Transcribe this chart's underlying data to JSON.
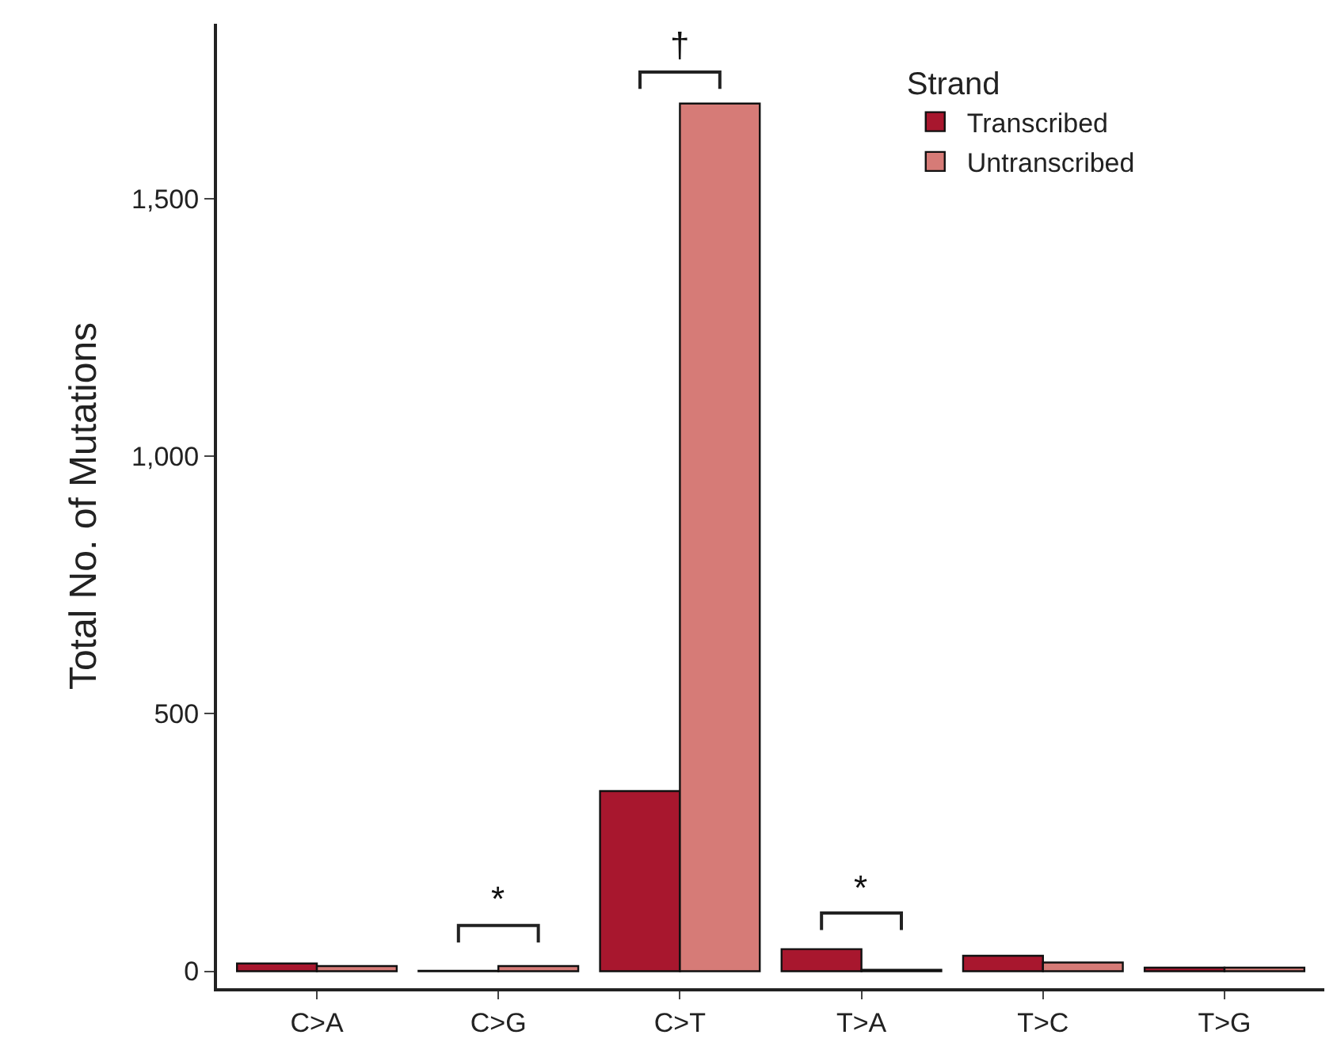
{
  "chart_data": {
    "type": "bar",
    "ylabel": "Total No. of Mutations",
    "legend_title": "Strand",
    "categories": [
      "C>A",
      "C>G",
      "C>T",
      "T>A",
      "T>C",
      "T>G"
    ],
    "series": [
      {
        "name": "Transcribed",
        "color": "#a8172e",
        "values": [
          15,
          1,
          350,
          43,
          30,
          7
        ]
      },
      {
        "name": "Untranscribed",
        "color": "#d67b77",
        "values": [
          10,
          10,
          1685,
          3,
          17,
          7
        ]
      }
    ],
    "ylim": [
      -33,
      1840
    ],
    "yticks": [
      0,
      500,
      {
        "value": 1000,
        "label": "1,000"
      },
      {
        "value": 1500,
        "label": "1,500"
      }
    ],
    "legend": "top right",
    "annotations": [
      "*",
      "†",
      "*"
    ]
  }
}
